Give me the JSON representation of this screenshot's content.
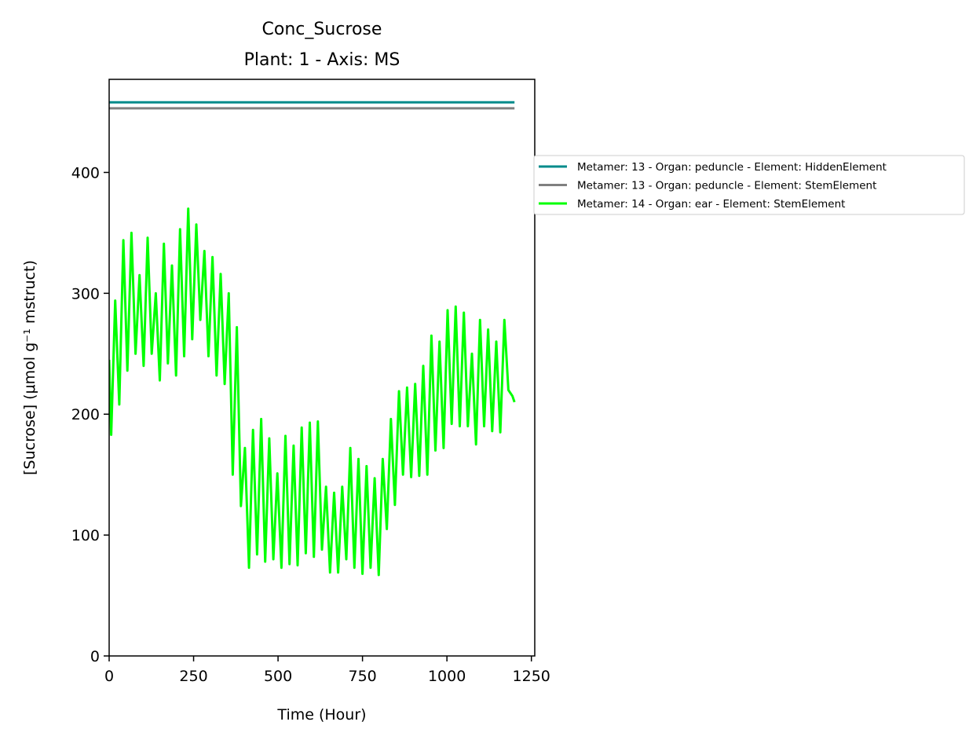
{
  "chart_data": {
    "type": "line",
    "title": "Conc_Sucrose",
    "subtitle": "Plant: 1 - Axis: MS",
    "xlabel": "Time (Hour)",
    "ylabel": "[Sucrose] (μmol g⁻¹ mstruct)",
    "xlim": [
      0,
      1260
    ],
    "ylim": [
      0,
      477
    ],
    "xticks": [
      0,
      250,
      500,
      750,
      1000,
      1250
    ],
    "xtick_labels": [
      "0",
      "250",
      "500",
      "750",
      "1000",
      "1250"
    ],
    "yticks": [
      0,
      100,
      200,
      300,
      400
    ],
    "ytick_labels": [
      "0",
      "100",
      "200",
      "300",
      "400"
    ],
    "grid": false,
    "legend_position": "outside right",
    "series": [
      {
        "name": "Metamer: 13 - Organ: peduncle - Element: HiddenElement",
        "color": "#008b8b",
        "x": [
          0,
          1200
        ],
        "y": [
          458,
          458
        ]
      },
      {
        "name": "Metamer: 13 - Organ: peduncle - Element: StemElement",
        "color": "#808080",
        "x": [
          0,
          1200
        ],
        "y": [
          453,
          453
        ]
      },
      {
        "name": "Metamer: 14 - Organ: ear - Element: StemElement",
        "color": "#00ff00",
        "x": [
          0,
          6,
          18,
          30,
          42,
          54,
          66,
          78,
          90,
          102,
          114,
          126,
          138,
          150,
          162,
          174,
          186,
          198,
          210,
          222,
          234,
          246,
          258,
          270,
          282,
          294,
          306,
          318,
          330,
          342,
          354,
          366,
          378,
          390,
          402,
          414,
          426,
          438,
          450,
          462,
          474,
          486,
          498,
          510,
          522,
          534,
          546,
          558,
          570,
          582,
          594,
          606,
          618,
          630,
          642,
          654,
          666,
          678,
          690,
          702,
          714,
          726,
          738,
          750,
          762,
          774,
          786,
          798,
          810,
          822,
          834,
          846,
          858,
          870,
          882,
          894,
          906,
          918,
          930,
          942,
          954,
          966,
          978,
          990,
          1002,
          1014,
          1026,
          1038,
          1050,
          1062,
          1074,
          1086,
          1098,
          1110,
          1122,
          1134,
          1146,
          1158,
          1170,
          1182,
          1194,
          1200
        ],
        "y": [
          245,
          183,
          294,
          208,
          344,
          236,
          350,
          250,
          315,
          240,
          346,
          250,
          300,
          228,
          341,
          242,
          323,
          232,
          353,
          248,
          370,
          262,
          357,
          278,
          335,
          248,
          330,
          232,
          316,
          225,
          300,
          150,
          272,
          124,
          172,
          73,
          187,
          84,
          196,
          78,
          180,
          80,
          151,
          73,
          182,
          76,
          174,
          75,
          189,
          85,
          193,
          82,
          194,
          88,
          140,
          69,
          135,
          69,
          140,
          80,
          172,
          73,
          163,
          68,
          157,
          73,
          147,
          67,
          163,
          105,
          196,
          125,
          219,
          150,
          222,
          148,
          225,
          149,
          240,
          150,
          265,
          170,
          260,
          172,
          286,
          192,
          289,
          190,
          284,
          190,
          250,
          175,
          278,
          190,
          270,
          186,
          260,
          185,
          278,
          220,
          215,
          210
        ]
      }
    ]
  }
}
